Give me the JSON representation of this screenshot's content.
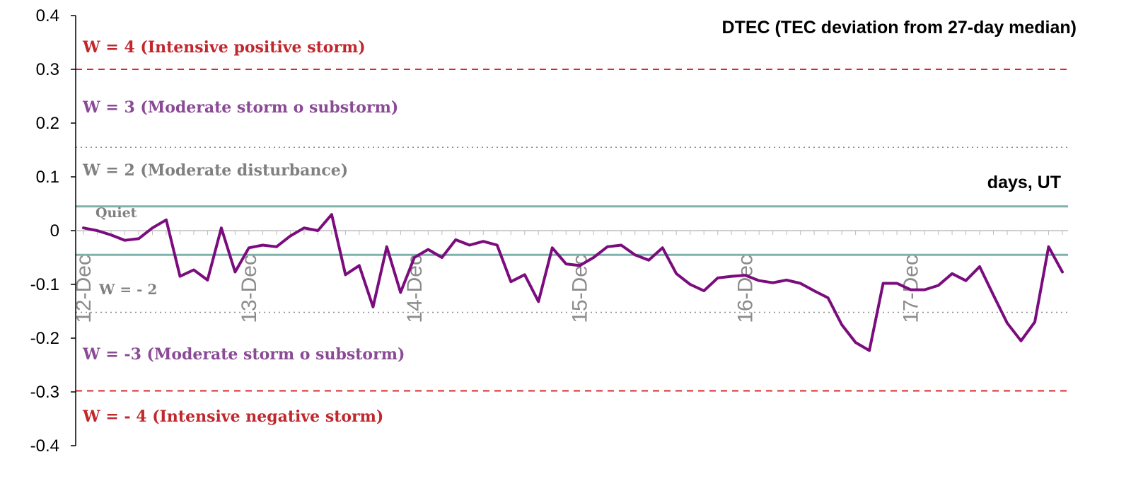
{
  "chart_data": {
    "type": "line",
    "title": "DTEC (TEC deviation from 27-day median)",
    "xlabel": "days, UT",
    "ylabel": "",
    "ylim": [
      -0.4,
      0.4
    ],
    "yticks": [
      {
        "value": 0.4,
        "label": "0.4"
      },
      {
        "value": 0.3,
        "label": "0.3"
      },
      {
        "value": 0.2,
        "label": "0.2"
      },
      {
        "value": 0.1,
        "label": "0.1"
      },
      {
        "value": 0,
        "label": "0"
      },
      {
        "value": -0.1,
        "label": "-0.1"
      },
      {
        "value": -0.2,
        "label": "-0.2"
      },
      {
        "value": -0.3,
        "label": "-0.3"
      },
      {
        "value": -0.4,
        "label": "-0.4"
      }
    ],
    "xcategories": [
      {
        "label": "12-Dec",
        "index": 0
      },
      {
        "label": "13-Dec",
        "index": 12
      },
      {
        "label": "14-Dec",
        "index": 24
      },
      {
        "label": "15-Dec",
        "index": 36
      },
      {
        "label": "16-Dec",
        "index": 48
      },
      {
        "label": "17-Dec",
        "index": 60
      }
    ],
    "grid": false,
    "series": [
      {
        "color": "#7b0c7d",
        "values": [
          0.005,
          0.0,
          -0.008,
          -0.018,
          -0.015,
          0.005,
          0.02,
          -0.085,
          -0.073,
          -0.092,
          0.005,
          -0.077,
          -0.032,
          -0.027,
          -0.03,
          -0.01,
          0.005,
          0.0,
          0.03,
          -0.082,
          -0.065,
          -0.142,
          -0.03,
          -0.115,
          -0.05,
          -0.035,
          -0.05,
          -0.017,
          -0.027,
          -0.02,
          -0.027,
          -0.095,
          -0.082,
          -0.132,
          -0.032,
          -0.062,
          -0.065,
          -0.05,
          -0.03,
          -0.027,
          -0.045,
          -0.055,
          -0.032,
          -0.08,
          -0.1,
          -0.112,
          -0.088,
          -0.085,
          -0.083,
          -0.093,
          -0.097,
          -0.092,
          -0.098,
          -0.112,
          -0.125,
          -0.175,
          -0.208,
          -0.223,
          -0.098,
          -0.098,
          -0.11,
          -0.11,
          -0.102,
          -0.08,
          -0.093,
          -0.067,
          -0.12,
          -0.172,
          -0.205,
          -0.17,
          -0.03,
          -0.077
        ]
      }
    ],
    "thresholds": [
      {
        "value": 0.3,
        "label": "W = 4 (Intensive positive storm)",
        "style": "dashed",
        "color": "#d9292c",
        "label_color": "#c0282d"
      },
      {
        "value": 0.155,
        "label": "W = 3 (Moderate storm o substorm)",
        "style": "dotted",
        "color": "#8c8c8c",
        "label_color": "#8a4a96"
      },
      {
        "value": 0.045,
        "label": "W = 2 (Moderate disturbance)",
        "style": "solid",
        "color": "#7fb2ad",
        "label_color": "#808080"
      },
      {
        "value": -0.045,
        "label": "Quiet",
        "style": "solid",
        "color": "#7fb2ad",
        "label_color": "#808080"
      },
      {
        "value": -0.152,
        "label": "W = - 2",
        "style": "dotted",
        "color": "#8c8c8c",
        "label_color": "#808080"
      },
      {
        "value": -0.298,
        "label": "W = -3 (Moderate storm o substorm)",
        "style": "dashed",
        "color": "#d9292c",
        "label_color": "#8a4a96"
      },
      {
        "value": -0.4,
        "label": "W = - 4 (Intensive negative storm)",
        "style": "none",
        "color": "#d9292c",
        "label_color": "#c0282d"
      }
    ]
  }
}
